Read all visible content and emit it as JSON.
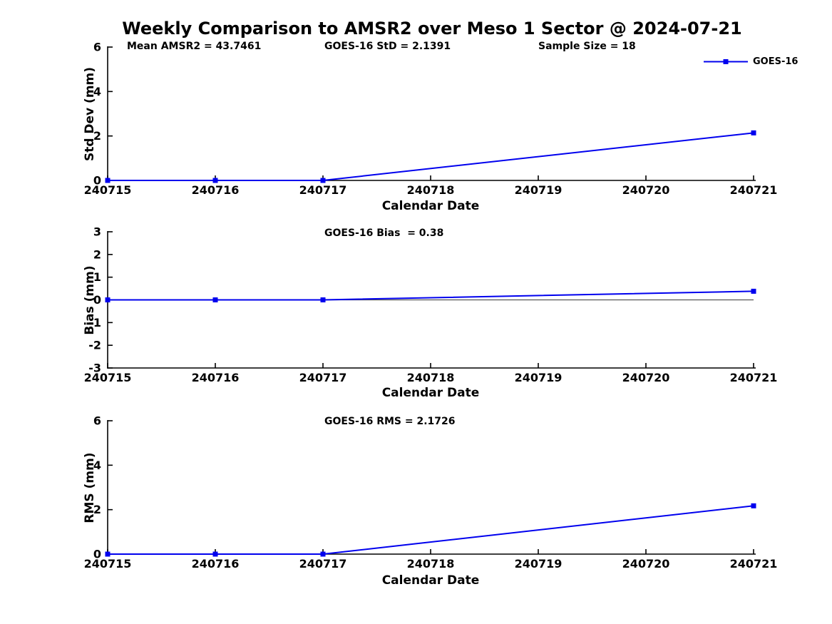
{
  "figure": {
    "title": "Weekly Comparison to AMSR2 over Meso 1 Sector @ 2024-07-21",
    "legend": {
      "label": "GOES-16",
      "color": "#0000EE",
      "marker": "square"
    }
  },
  "colors": {
    "series_blue": "#0000EE",
    "axis_black": "#000000",
    "zero_line_gray": "#555555"
  },
  "stats": {
    "mean_amsr2": "43.7461",
    "goes16_std": "2.1391",
    "sample_size": "18",
    "goes16_bias": "0.38",
    "goes16_rms": "2.1726"
  },
  "chart_data": [
    {
      "type": "line",
      "ylabel": "Std Dev (mm)",
      "xlabel": "Calendar Date",
      "ylim": [
        0,
        6
      ],
      "yticks": [
        0,
        2,
        4,
        6
      ],
      "xlim": [
        240715,
        240721
      ],
      "xticks": [
        "240715",
        "240716",
        "240717",
        "240718",
        "240719",
        "240720",
        "240721"
      ],
      "grid": false,
      "zero_line": false,
      "annotations": [
        "Mean AMSR2 = 43.7461",
        "GOES-16 StD = 2.1391",
        "Sample Size = 18"
      ],
      "legend_position": "top-right-outside",
      "series": [
        {
          "name": "GOES-16",
          "color": "#0000EE",
          "marker": "square",
          "points": [
            [
              240715,
              0
            ],
            [
              240716,
              0
            ],
            [
              240717,
              0
            ],
            [
              240721,
              2.1391
            ]
          ]
        }
      ]
    },
    {
      "type": "line",
      "ylabel": "Bias (mm)",
      "xlabel": "Calendar Date",
      "ylim": [
        -3,
        3
      ],
      "yticks": [
        -3,
        -2,
        -1,
        0,
        1,
        2,
        3
      ],
      "xlim": [
        240715,
        240721
      ],
      "xticks": [
        "240715",
        "240716",
        "240717",
        "240718",
        "240719",
        "240720",
        "240721"
      ],
      "grid": false,
      "zero_line": true,
      "annotations": [
        "GOES-16 Bias  = 0.38"
      ],
      "series": [
        {
          "name": "GOES-16",
          "color": "#0000EE",
          "marker": "square",
          "points": [
            [
              240715,
              0
            ],
            [
              240716,
              0
            ],
            [
              240717,
              0
            ],
            [
              240721,
              0.38
            ]
          ]
        }
      ]
    },
    {
      "type": "line",
      "ylabel": "RMS (mm)",
      "xlabel": "Calendar Date",
      "ylim": [
        0,
        6
      ],
      "yticks": [
        0,
        2,
        4,
        6
      ],
      "xlim": [
        240715,
        240721
      ],
      "xticks": [
        "240715",
        "240716",
        "240717",
        "240718",
        "240719",
        "240720",
        "240721"
      ],
      "grid": false,
      "zero_line": false,
      "annotations": [
        "GOES-16 RMS = 2.1726"
      ],
      "series": [
        {
          "name": "GOES-16",
          "color": "#0000EE",
          "marker": "square",
          "points": [
            [
              240715,
              0
            ],
            [
              240716,
              0
            ],
            [
              240717,
              0
            ],
            [
              240721,
              2.1726
            ]
          ]
        }
      ]
    }
  ]
}
